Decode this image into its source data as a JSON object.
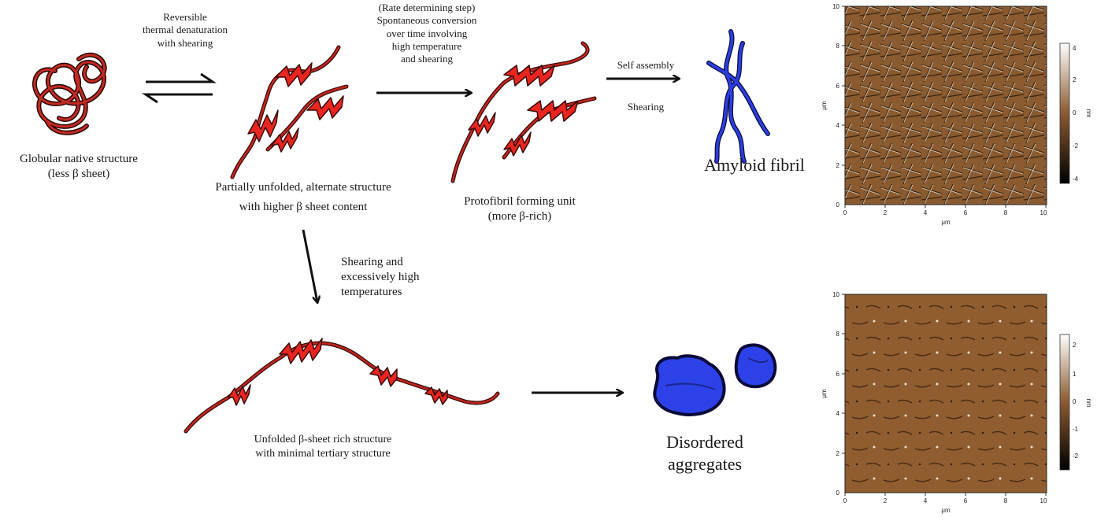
{
  "colors": {
    "helix_red": "#e8251e",
    "coil_dark": "#5a0f0f",
    "fibril_blue": "#2a3ee0",
    "aggregate_blue": "#2c42e8",
    "afm_brown": "#8a5a30"
  },
  "icons": [
    "globular-coil-icon",
    "partially-unfolded-protein-icon",
    "protofibril-unit-icon",
    "amyloid-fibril-icon",
    "unfolded-chain-icon",
    "disordered-aggregate-icon",
    "equilibrium-arrows-icon",
    "reaction-arrow-icon"
  ],
  "nodes": {
    "native": {
      "line1": "Globular native structure",
      "line2": "(less β sheet)"
    },
    "partial": {
      "line1": "Partially unfolded, alternate structure",
      "line2": "with higher β sheet content"
    },
    "protofibril": {
      "line1": "Protofibril forming unit",
      "line2": "(more β-rich)"
    },
    "fibril": {
      "label": "Amyloid fibril"
    },
    "unfolded": {
      "line1": "Unfolded β-sheet rich structure",
      "line2": "with minimal tertiary structure"
    },
    "aggregates": {
      "line1": "Disordered",
      "line2": "aggregates"
    }
  },
  "arrows": {
    "reversible": {
      "line1": "Reversible",
      "line2": "thermal denaturation",
      "line3": "with shearing"
    },
    "conversion": {
      "line1": "(Rate determining step)",
      "line2": "Spontaneous conversion",
      "line3": "over time involving",
      "line4": "high temperature",
      "line5": "and shearing"
    },
    "assembly": {
      "above": "Self assembly",
      "below": "Shearing"
    },
    "denature": {
      "line1": "Shearing and",
      "line2": "excessively high",
      "line3": "temperatures"
    }
  },
  "afm_top": {
    "x_ticks": [
      "0",
      "2",
      "4",
      "6",
      "8",
      "10"
    ],
    "y_ticks": [
      "0",
      "2",
      "4",
      "6",
      "8",
      "10"
    ],
    "x_unit": "μm",
    "y_unit": "μm",
    "scale_ticks": [
      "4",
      "2",
      "0",
      "-2",
      "-4"
    ],
    "scale_unit": "nm"
  },
  "afm_bottom": {
    "x_ticks": [
      "0",
      "2",
      "4",
      "6",
      "8",
      "10"
    ],
    "y_ticks": [
      "0",
      "2",
      "4",
      "6",
      "8",
      "10"
    ],
    "x_unit": "μm",
    "y_unit": "μm",
    "scale_ticks": [
      "2",
      "1",
      "0",
      "-1",
      "-2"
    ],
    "scale_unit": "nm"
  }
}
